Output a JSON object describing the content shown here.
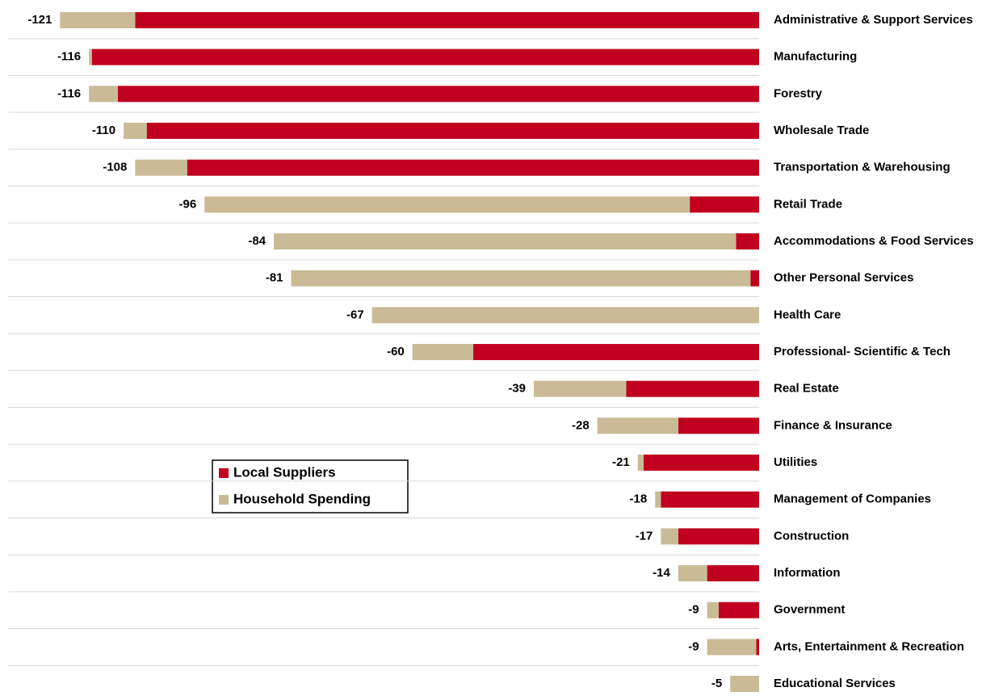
{
  "chart_data": {
    "type": "stacked-barh",
    "categories": [
      "Administrative & Support Services",
      "Manufacturing",
      "Forestry",
      "Wholesale Trade",
      "Transportation & Warehousing",
      "Retail Trade",
      "Accommodations & Food Services",
      "Other Personal Services",
      "Health Care",
      "Professional- Scientific & Tech",
      "Real Estate",
      "Finance & Insurance",
      "Utilities",
      "Management of Companies",
      "Construction",
      "Information",
      "Government",
      "Arts, Entertainment & Recreation",
      "Educational Services"
    ],
    "series": [
      {
        "name": "Local Suppliers",
        "color": "#c0001e",
        "values": [
          -108,
          -115.5,
          -111,
          -106,
          -99,
          -12,
          -4,
          -1.5,
          0,
          -49.5,
          -23,
          -14,
          -20,
          -17,
          -14,
          -9,
          -7,
          -0.5,
          0
        ]
      },
      {
        "name": "Household Spending",
        "color": "#c8bb96",
        "values": [
          -13,
          -0.5,
          -5,
          -4,
          -9,
          -84,
          -80,
          -79.5,
          -67,
          -10.5,
          -16,
          -14,
          -1,
          -1,
          -3,
          -5,
          -2,
          -8.5,
          -5
        ]
      }
    ],
    "totals": [
      -121,
      -116,
      -116,
      -110,
      -108,
      -96,
      -84,
      -81,
      -67,
      -60,
      -39,
      -28,
      -21,
      -18,
      -17,
      -14,
      -9,
      -9,
      -5
    ],
    "xlim": [
      -130,
      0
    ]
  }
}
